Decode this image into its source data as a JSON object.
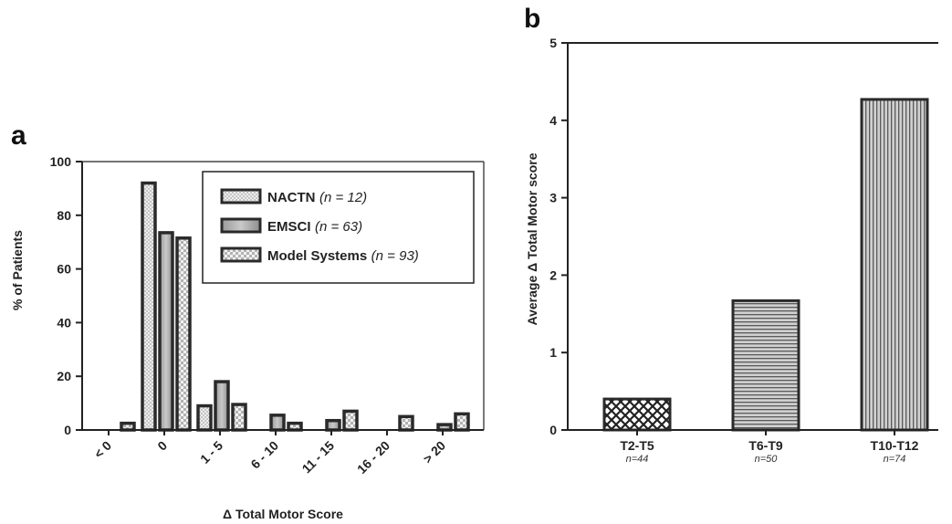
{
  "panels": {
    "a": "a",
    "b": "b"
  },
  "colors": {
    "axis": "#222222",
    "bar_fill": "#bdbdbd",
    "bar_stroke": "#2a2a2a"
  },
  "chart_data": [
    {
      "panel": "a",
      "type": "bar",
      "title": "",
      "xlabel": "Δ Total Motor Score",
      "ylabel": "% of Patients",
      "ylim": [
        0,
        100
      ],
      "yticks": [
        0,
        20,
        40,
        60,
        80,
        100
      ],
      "categories": [
        "< 0",
        "0",
        "1 - 5",
        "6 - 10",
        "11 - 15",
        "16 - 20",
        "> 20"
      ],
      "series": [
        {
          "name": "NACTN",
          "n_label": "(n = 12)",
          "pattern": "dots",
          "values": [
            0,
            92,
            9,
            0,
            0,
            0,
            0
          ]
        },
        {
          "name": "EMSCI",
          "n_label": "(n = 63)",
          "pattern": "gradient",
          "values": [
            0,
            73.5,
            18,
            5.5,
            3.5,
            0,
            2
          ]
        },
        {
          "name": "Model Systems",
          "n_label": "(n = 93)",
          "pattern": "checker",
          "values": [
            2.5,
            71.5,
            9.5,
            2.5,
            7,
            5,
            6
          ]
        }
      ],
      "legend_position": "top-right"
    },
    {
      "panel": "b",
      "type": "bar",
      "title": "",
      "xlabel": "",
      "ylabel": "Average Δ Total Motor score",
      "ylim": [
        0,
        5
      ],
      "yticks": [
        0,
        1,
        2,
        3,
        4,
        5
      ],
      "categories": [
        "T2-T5",
        "T6-T9",
        "T10-T12"
      ],
      "n_labels": [
        "n=44",
        "n=50",
        "n=74"
      ],
      "patterns": [
        "crosshatch",
        "horizontal",
        "vertical"
      ],
      "values": [
        0.4,
        1.67,
        4.27
      ]
    }
  ]
}
